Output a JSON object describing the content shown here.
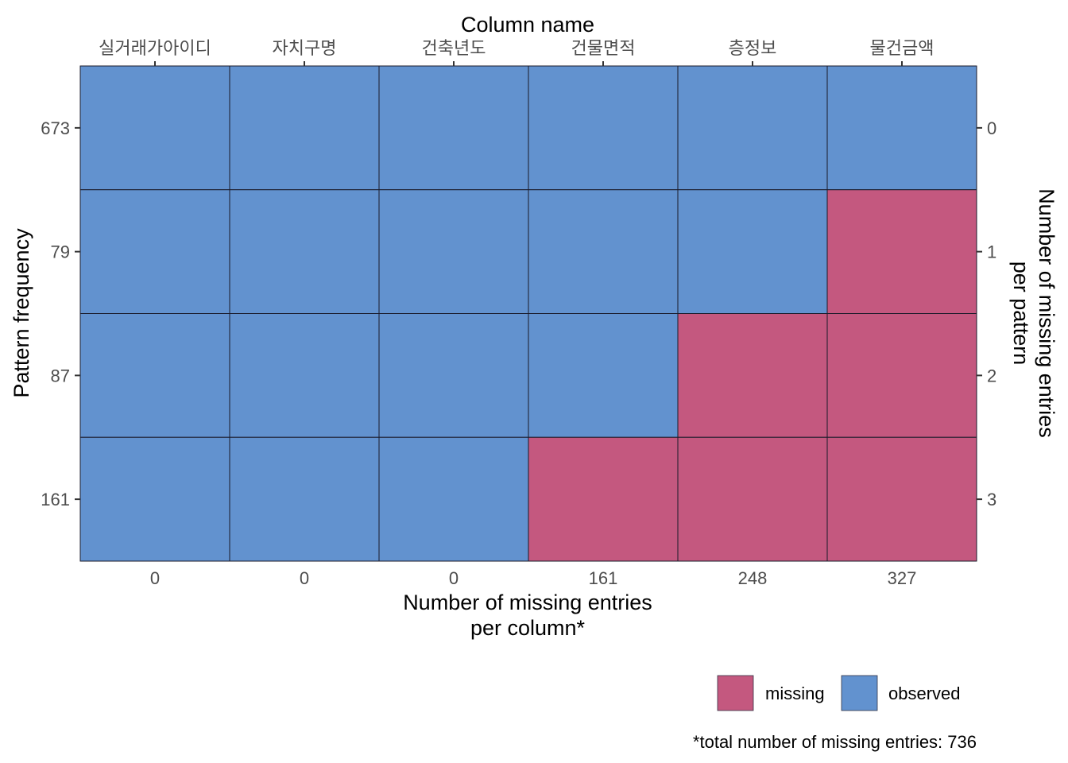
{
  "chart_data": {
    "type": "heatmap",
    "title": "",
    "top_axis_title": "Column name",
    "bottom_axis_title": [
      "Number of missing entries",
      "per column*"
    ],
    "left_axis_title": "Pattern frequency",
    "right_axis_title": [
      "Number of missing entries",
      "per pattern"
    ],
    "columns": [
      "실거래가아이디",
      "자치구명",
      "건축년도",
      "건물면적",
      "층정보",
      "물건금액"
    ],
    "missing_per_column": [
      "0",
      "0",
      "0",
      "161",
      "248",
      "327"
    ],
    "pattern_frequency": [
      "673",
      "79",
      "87",
      "161"
    ],
    "missing_per_pattern": [
      "0",
      "1",
      "2",
      "3"
    ],
    "patterns": [
      [
        0,
        0,
        0,
        0,
        0,
        0
      ],
      [
        0,
        0,
        0,
        0,
        0,
        1
      ],
      [
        0,
        0,
        0,
        0,
        1,
        1
      ],
      [
        0,
        0,
        0,
        1,
        1,
        1
      ]
    ],
    "legend": {
      "position": "bottom-right",
      "items": [
        {
          "label": "missing",
          "value": 1,
          "color": "#c4587f"
        },
        {
          "label": "observed",
          "value": 0,
          "color": "#6292cf"
        }
      ]
    },
    "caption": "*total number of missing entries: 736",
    "colors": {
      "missing": "#c4587f",
      "observed": "#6292cf",
      "grid_line": "#1a1a2a"
    }
  }
}
